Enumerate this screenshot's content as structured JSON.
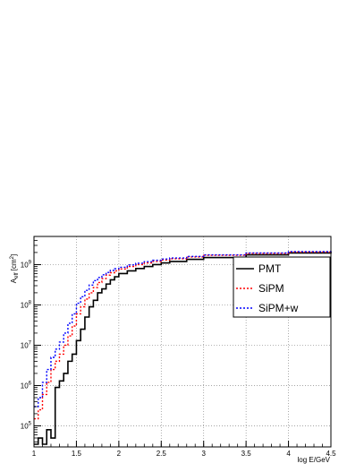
{
  "chart_data": {
    "type": "line",
    "title": "",
    "xlabel": "log E/GeV",
    "ylabel": "A_eff [cm^2]",
    "xlim": [
      1,
      4.5
    ],
    "ylim": [
      30000,
      5000000000
    ],
    "y_scale": "log",
    "grid": true,
    "legend": "right",
    "x_ticks": [
      "1",
      "1.5",
      "2",
      "2.5",
      "3",
      "3.5",
      "4",
      "4.5"
    ],
    "x_tick_values": [
      1,
      1.5,
      2,
      2.5,
      3,
      3.5,
      4,
      4.5
    ],
    "y_tick_values": [
      100000,
      1000000,
      10000000,
      100000000,
      1000000000
    ],
    "y_tick_bases": [
      "10",
      "10",
      "10",
      "10",
      "10"
    ],
    "y_tick_exps": [
      "5",
      "6",
      "7",
      "8",
      "9"
    ],
    "ylabel_main": "A",
    "ylabel_sub": "eff",
    "ylabel_unit_open": "[cm",
    "ylabel_unit_sup": "2",
    "ylabel_unit_close": "]",
    "series": [
      {
        "name": "PMT",
        "color": "#000000",
        "style": "solid",
        "x": [
          1.0,
          1.05,
          1.1,
          1.15,
          1.2,
          1.25,
          1.3,
          1.35,
          1.4,
          1.45,
          1.5,
          1.55,
          1.6,
          1.65,
          1.7,
          1.75,
          1.8,
          1.85,
          1.9,
          1.95,
          2.0,
          2.1,
          2.2,
          2.3,
          2.4,
          2.5,
          2.6,
          2.8,
          3.0,
          3.5,
          4.0,
          4.5
        ],
        "y": [
          35000,
          50000,
          35000,
          80000,
          50000,
          900000,
          1300000,
          2000000,
          4000000,
          6000000,
          13000000,
          25000000,
          50000000,
          90000000,
          130000000,
          200000000,
          250000000,
          330000000,
          420000000,
          500000000,
          600000000,
          700000000,
          800000000,
          900000000,
          1000000000,
          1100000000,
          1200000000,
          1350000000,
          1500000000,
          1750000000,
          1950000000,
          2100000000
        ]
      },
      {
        "name": "SiPM",
        "color": "#ff0000",
        "style": "dotted",
        "x": [
          1.0,
          1.05,
          1.1,
          1.15,
          1.2,
          1.25,
          1.3,
          1.35,
          1.4,
          1.45,
          1.5,
          1.55,
          1.6,
          1.65,
          1.7,
          1.75,
          1.8,
          1.85,
          1.9,
          1.95,
          2.0,
          2.1,
          2.2,
          2.3,
          2.4,
          2.5,
          2.6,
          2.8,
          3.0,
          3.5,
          4.0,
          4.5
        ],
        "y": [
          150000,
          250000,
          600000,
          1200000,
          2500000,
          4000000,
          6000000,
          10000000,
          17000000,
          30000000,
          60000000,
          90000000,
          140000000,
          200000000,
          270000000,
          360000000,
          450000000,
          550000000,
          630000000,
          700000000,
          780000000,
          900000000,
          1000000000,
          1100000000,
          1200000000,
          1300000000,
          1400000000,
          1550000000,
          1700000000,
          1900000000,
          2050000000,
          2200000000
        ]
      },
      {
        "name": "SiPM+w",
        "color": "#0000ff",
        "style": "dotted",
        "x": [
          1.0,
          1.05,
          1.1,
          1.15,
          1.2,
          1.25,
          1.3,
          1.35,
          1.4,
          1.45,
          1.5,
          1.55,
          1.6,
          1.65,
          1.7,
          1.75,
          1.8,
          1.85,
          1.9,
          1.95,
          2.0,
          2.1,
          2.2,
          2.3,
          2.4,
          2.5,
          2.6,
          2.8,
          3.0,
          3.5,
          4.0,
          4.5
        ],
        "y": [
          300000,
          500000,
          1200000,
          2500000,
          5000000,
          8000000,
          12000000,
          20000000,
          35000000,
          60000000,
          110000000,
          160000000,
          230000000,
          310000000,
          400000000,
          480000000,
          560000000,
          640000000,
          720000000,
          790000000,
          860000000,
          980000000,
          1080000000,
          1180000000,
          1280000000,
          1380000000,
          1460000000,
          1600000000,
          1750000000,
          1950000000,
          2100000000,
          2250000000
        ]
      }
    ]
  }
}
